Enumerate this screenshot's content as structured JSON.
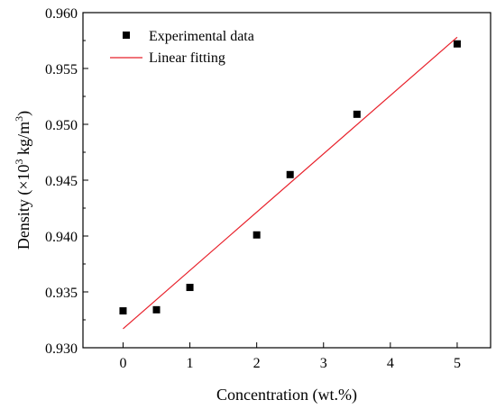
{
  "chart_data": {
    "type": "scatter",
    "title": "",
    "xlabel": "Concentration (wt.%)",
    "ylabel": {
      "prefix": "Density (×10",
      "exp": "3",
      "middle": " kg/m",
      "exp2": "3",
      "suffix": ")"
    },
    "xlim": [
      -0.6,
      5.5
    ],
    "ylim": [
      0.93,
      0.96
    ],
    "xticks": [
      "0",
      "1",
      "2",
      "3",
      "4",
      "5"
    ],
    "yticks": [
      "0.930",
      "0.935",
      "0.940",
      "0.945",
      "0.950",
      "0.955",
      "0.960"
    ],
    "grid": false,
    "legend_position": "top-left",
    "series": [
      {
        "name": "Experimental data",
        "kind": "scatter",
        "marker": "square",
        "color": "#000000",
        "x": [
          0,
          0.5,
          1,
          2,
          2.5,
          3.5,
          5
        ],
        "y": [
          0.9333,
          0.9334,
          0.9354,
          0.9401,
          0.9455,
          0.9509,
          0.9572
        ]
      },
      {
        "name": "Linear fitting",
        "kind": "line",
        "color": "#e8202a",
        "x": [
          0,
          5
        ],
        "y": [
          0.9317,
          0.9578
        ]
      }
    ]
  }
}
